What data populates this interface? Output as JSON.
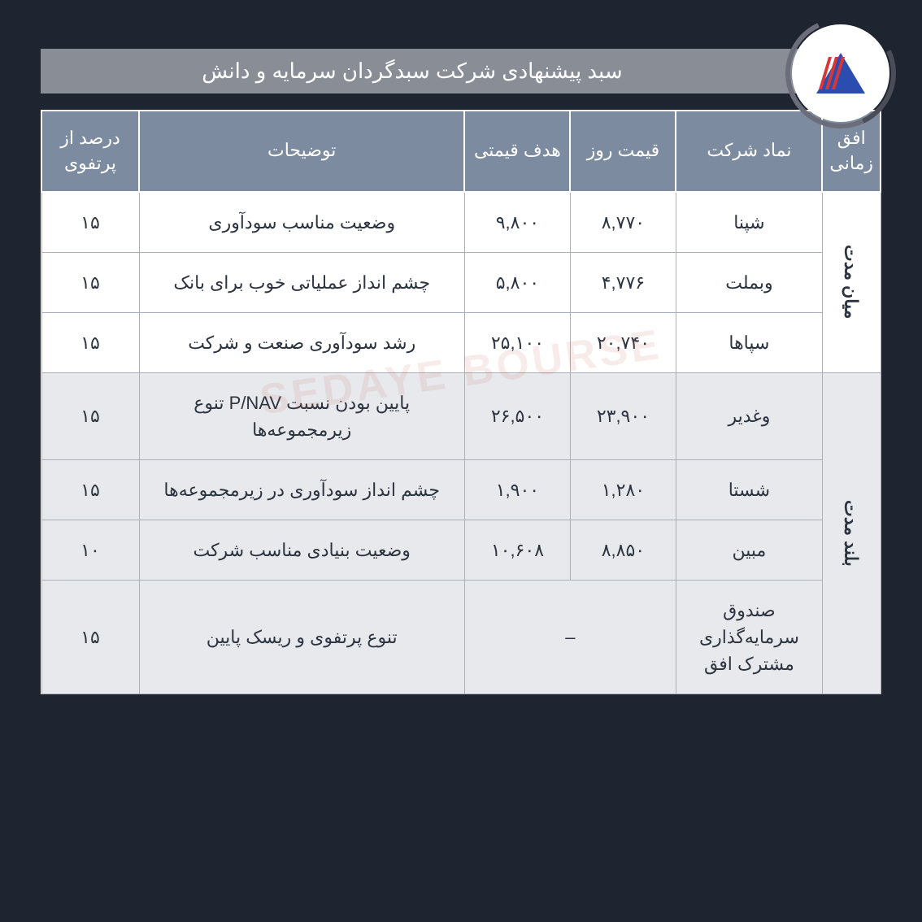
{
  "title": "سبد پیشنهادی شرکت سبدگردان سرمایه و دانش",
  "watermark": "SEDAYE BOURSE",
  "columns": {
    "horizon": "افق زمانی",
    "symbol": "نماد شرکت",
    "day_price": "قیمت روز",
    "target_price": "هدف قیمتی",
    "description": "توضیحات",
    "pct": "درصد از پرتفوی"
  },
  "groups": [
    {
      "label": "میان مدت",
      "alt": false,
      "rows": [
        {
          "symbol": "شپنا",
          "day_price": "۸,۷۷۰",
          "target_price": "۹,۸۰۰",
          "description": "وضعیت مناسب سودآوری",
          "pct": "۱۵"
        },
        {
          "symbol": "وبملت",
          "day_price": "۴,۷۷۶",
          "target_price": "۵,۸۰۰",
          "description": "چشم انداز عملیاتی خوب برای بانک",
          "pct": "۱۵"
        },
        {
          "symbol": "سپاها",
          "day_price": "۲۰,۷۴۰",
          "target_price": "۲۵,۱۰۰",
          "description": "رشد سودآوری صنعت و شرکت",
          "pct": "۱۵"
        }
      ]
    },
    {
      "label": "بلند مدت",
      "alt": true,
      "rows": [
        {
          "symbol": "وغدیر",
          "day_price": "۲۳,۹۰۰",
          "target_price": "۲۶,۵۰۰",
          "description": "پایین بودن نسبت P/NAV تنوع زیرمجموعه‌ها",
          "pct": "۱۵"
        },
        {
          "symbol": "شستا",
          "day_price": "۱,۲۸۰",
          "target_price": "۱,۹۰۰",
          "description": "چشم انداز سودآوری در زیرمجموعه‌ها",
          "pct": "۱۵"
        },
        {
          "symbol": "مبین",
          "day_price": "۸,۸۵۰",
          "target_price": "۱۰,۶۰۸",
          "description": "وضعیت بنیادی مناسب شرکت",
          "pct": "۱۰"
        },
        {
          "symbol": "صندوق سرمایه‌گذاری مشترک افق",
          "day_price": "–",
          "target_price": "",
          "description": "تنوع پرتفوی و ریسک پایین",
          "pct": "۱۵",
          "merge_price": true
        }
      ]
    }
  ],
  "colors": {
    "page_bg": "#1e2430",
    "title_bg": "#898d96",
    "header_bg": "#7d8ba0",
    "row_bg": "#ffffff",
    "alt_bg": "#e7e9ed",
    "border": "#aab0bb",
    "text": "#2c3440"
  }
}
